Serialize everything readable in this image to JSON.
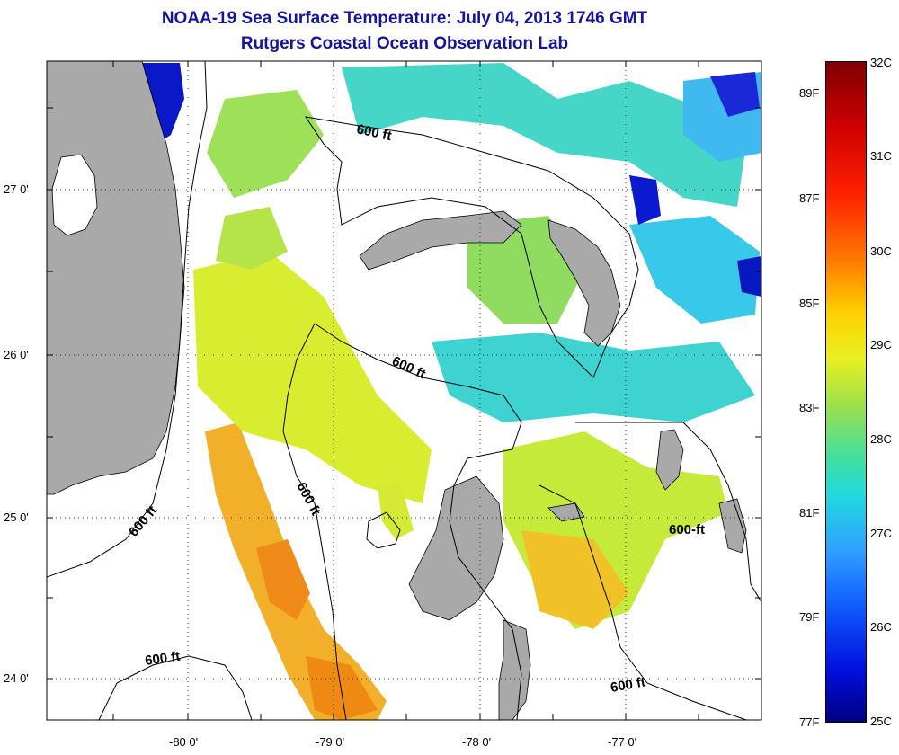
{
  "header": {
    "title": "NOAA-19 Sea Surface Temperature:  July 04, 2013 1746 GMT",
    "subtitle": "Rutgers Coastal Ocean Observation Lab"
  },
  "axes": {
    "x_ticks": [
      "-80 0'",
      "-79 0'",
      "-78 0'",
      "-77 0'"
    ],
    "y_ticks": [
      "27 0'",
      "26 0'",
      "25 0'",
      "24 0'"
    ]
  },
  "contours": {
    "label": "600 ft",
    "label_alt": "600-ft"
  },
  "colorbar": {
    "celsius": [
      "32C",
      "31C",
      "30C",
      "29C",
      "28C",
      "27C",
      "26C",
      "25C"
    ],
    "fahrenheit": [
      "89F",
      "87F",
      "85F",
      "83F",
      "81F",
      "79F",
      "77F"
    ]
  },
  "colors": {
    "land": "#a9a9a9",
    "title": "#1414a0",
    "warm": "#f0a020",
    "mid": "#c8ee30",
    "cool": "#40d8c0",
    "cold": "#0818c8"
  }
}
